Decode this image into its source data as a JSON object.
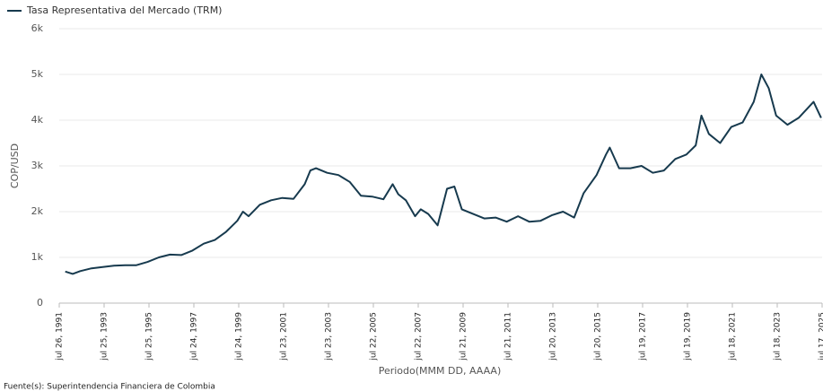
{
  "chart_data": {
    "type": "line",
    "y_label": "COP/USD",
    "x_label": "Periodo(MMM DD, AAAA)",
    "source": "Fuente(s): Superintendencia Financiera de Colombia",
    "legend": "top-left",
    "grid": true,
    "x": [
      "1991-11-01",
      "1992-03-01",
      "1992-07-01",
      "1993-01-01",
      "1993-07-01",
      "1994-01-01",
      "1994-07-01",
      "1995-01-01",
      "1995-07-01",
      "1996-01-01",
      "1996-07-01",
      "1997-01-01",
      "1997-07-01",
      "1998-01-01",
      "1998-07-01",
      "1999-01-01",
      "1999-07-01",
      "1999-10-01",
      "2000-01-01",
      "2000-07-01",
      "2001-01-01",
      "2001-07-01",
      "2002-01-01",
      "2002-07-01",
      "2002-10-01",
      "2003-01-01",
      "2003-07-01",
      "2004-01-01",
      "2004-07-01",
      "2005-01-01",
      "2005-07-01",
      "2006-01-01",
      "2006-06-01",
      "2006-09-01",
      "2007-01-01",
      "2007-06-01",
      "2007-09-01",
      "2008-01-01",
      "2008-06-01",
      "2008-11-01",
      "2009-03-01",
      "2009-07-01",
      "2010-01-01",
      "2010-07-01",
      "2011-01-01",
      "2011-07-01",
      "2012-01-01",
      "2012-07-01",
      "2013-01-01",
      "2013-07-01",
      "2014-01-01",
      "2014-07-01",
      "2014-12-01",
      "2015-07-01",
      "2015-12-01",
      "2016-02-01",
      "2016-07-01",
      "2017-01-01",
      "2017-07-01",
      "2018-01-01",
      "2018-07-01",
      "2019-01-01",
      "2019-07-01",
      "2019-12-01",
      "2020-03-01",
      "2020-07-01",
      "2021-01-01",
      "2021-07-01",
      "2022-01-01",
      "2022-07-01",
      "2022-11-01",
      "2023-03-01",
      "2023-07-01",
      "2024-01-01",
      "2024-07-01",
      "2025-03-01",
      "2025-07-01"
    ],
    "series": [
      {
        "name": "Tasa Representativa del Mercado (TRM)",
        "color": "#173a4e",
        "values": [
          690,
          640,
          700,
          760,
          790,
          820,
          830,
          830,
          900,
          1000,
          1060,
          1050,
          1150,
          1300,
          1380,
          1560,
          1800,
          2000,
          1900,
          2150,
          2250,
          2300,
          2280,
          2600,
          2900,
          2950,
          2850,
          2800,
          2650,
          2350,
          2330,
          2270,
          2600,
          2380,
          2250,
          1900,
          2050,
          1950,
          1700,
          2500,
          2550,
          2050,
          1950,
          1850,
          1870,
          1780,
          1900,
          1780,
          1800,
          1920,
          2000,
          1870,
          2400,
          2800,
          3250,
          3400,
          2950,
          2950,
          3000,
          2850,
          2900,
          3150,
          3250,
          3450,
          4100,
          3700,
          3500,
          3850,
          3950,
          4400,
          5000,
          4700,
          4100,
          3900,
          4050,
          4400,
          4050
        ]
      }
    ],
    "xlim": [
      "1991-07-26",
      "2025-07-17"
    ],
    "xticks": [
      {
        "value": "1991-07-26",
        "label": "jul 26, 1991"
      },
      {
        "value": "1993-07-25",
        "label": "jul 25, 1993"
      },
      {
        "value": "1995-07-25",
        "label": "jul 25, 1995"
      },
      {
        "value": "1997-07-24",
        "label": "jul 24, 1997"
      },
      {
        "value": "1999-07-24",
        "label": "jul 24, 1999"
      },
      {
        "value": "2001-07-23",
        "label": "jul 23, 2001"
      },
      {
        "value": "2003-07-23",
        "label": "jul 23, 2003"
      },
      {
        "value": "2005-07-22",
        "label": "jul 22, 2005"
      },
      {
        "value": "2007-07-22",
        "label": "jul 22, 2007"
      },
      {
        "value": "2009-07-21",
        "label": "jul 21, 2009"
      },
      {
        "value": "2011-07-21",
        "label": "jul 21, 2011"
      },
      {
        "value": "2013-07-20",
        "label": "jul 20, 2013"
      },
      {
        "value": "2015-07-20",
        "label": "jul 20, 2015"
      },
      {
        "value": "2017-07-19",
        "label": "jul 19, 2017"
      },
      {
        "value": "2019-07-19",
        "label": "jul 19, 2019"
      },
      {
        "value": "2021-07-18",
        "label": "jul 18, 2021"
      },
      {
        "value": "2023-07-18",
        "label": "jul 18, 2023"
      },
      {
        "value": "2025-07-17",
        "label": "jul 17, 2025"
      }
    ],
    "ylim": [
      0,
      6000
    ],
    "yticks": [
      0,
      {
        "value": 1000,
        "label": "1k"
      },
      {
        "value": 2000,
        "label": "2k"
      },
      {
        "value": 3000,
        "label": "3k"
      },
      {
        "value": 4000,
        "label": "4k"
      },
      {
        "value": 5000,
        "label": "5k"
      },
      {
        "value": 6000,
        "label": "6k"
      }
    ]
  }
}
